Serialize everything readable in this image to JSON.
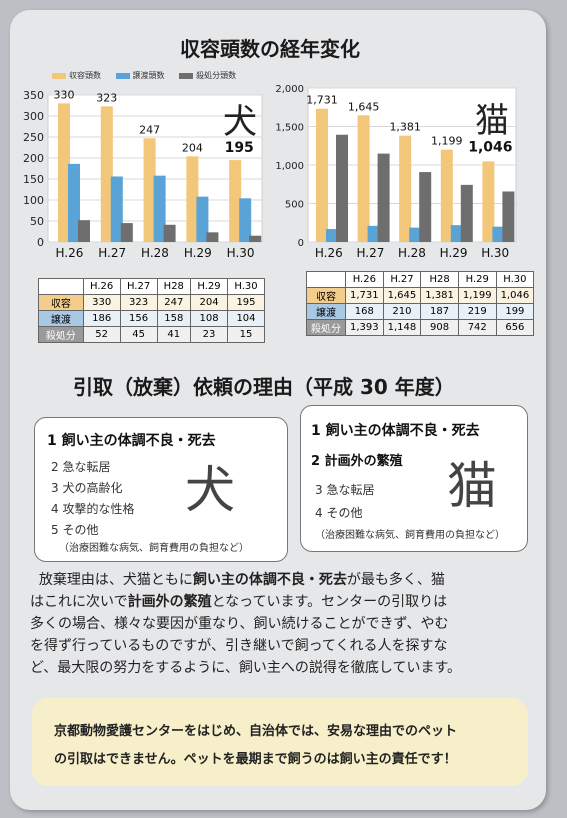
{
  "section1": {
    "title": "収容頭数の経年変化"
  },
  "legend": [
    {
      "label": "収容頭数",
      "color": "#f2c77a"
    },
    {
      "label": "譲渡頭数",
      "color": "#5aa3d6"
    },
    {
      "label": "殺処分頭数",
      "color": "#6e6e6e"
    }
  ],
  "chart_data": [
    {
      "type": "bar",
      "categories": [
        "H.26",
        "H.27",
        "H.28",
        "H.29",
        "H.30"
      ],
      "series": [
        {
          "name": "収容頭数",
          "values": [
            330,
            323,
            247,
            204,
            195
          ]
        },
        {
          "name": "譲渡頭数",
          "values": [
            186,
            156,
            158,
            108,
            104
          ]
        },
        {
          "name": "殺処分頭数",
          "values": [
            52,
            45,
            41,
            23,
            15
          ]
        }
      ],
      "data_labels": [
        "330",
        "323",
        "247",
        "204",
        "195"
      ],
      "yticks": [
        "0",
        "50",
        "100",
        "150",
        "200",
        "250",
        "300",
        "350"
      ],
      "ylim": [
        0,
        350
      ],
      "label": "犬",
      "grid": true
    },
    {
      "type": "bar",
      "categories": [
        "H.26",
        "H.27",
        "H.28",
        "H.29",
        "H.30"
      ],
      "series": [
        {
          "name": "収容頭数",
          "values": [
            1731,
            1645,
            1381,
            1199,
            1046
          ]
        },
        {
          "name": "譲渡頭数",
          "values": [
            168,
            210,
            187,
            219,
            199
          ]
        },
        {
          "name": "殺処分頭数",
          "values": [
            1393,
            1148,
            908,
            742,
            656
          ]
        }
      ],
      "data_labels": [
        "1,731",
        "1,645",
        "1,381",
        "1,199",
        "1,046"
      ],
      "yticks": [
        "0",
        "500",
        "1,000",
        "1,500",
        "2,000"
      ],
      "ylim": [
        0,
        2000
      ],
      "label": "猫",
      "grid": true
    }
  ],
  "dog_table": {
    "headers": [
      "",
      "H.26",
      "H.27",
      "H28",
      "H.29",
      "H.30"
    ],
    "rows": [
      [
        "収容",
        "330",
        "323",
        "247",
        "204",
        "195"
      ],
      [
        "譲渡",
        "186",
        "156",
        "158",
        "108",
        "104"
      ],
      [
        "殺処分",
        "52",
        "45",
        "41",
        "23",
        "15"
      ]
    ]
  },
  "cat_table": {
    "headers": [
      "",
      "H.26",
      "H.27",
      "H28",
      "H.29",
      "H.30"
    ],
    "rows": [
      [
        "収容",
        "1,731",
        "1,645",
        "1,381",
        "1,199",
        "1,046"
      ],
      [
        "譲渡",
        "168",
        "210",
        "187",
        "219",
        "199"
      ],
      [
        "殺処分",
        "1,393",
        "1,148",
        "908",
        "742",
        "656"
      ]
    ]
  },
  "section2": {
    "title": "引取（放棄）依頼の理由（平成 30 年度）"
  },
  "dog_reasons": {
    "big": "犬",
    "items": [
      "1 飼い主の体調不良・死去",
      "2 急な転居",
      "3 犬の高齢化",
      "4 攻撃的な性格",
      "5 その他"
    ],
    "note": "（治療困難な病気、飼育費用の負担など）"
  },
  "cat_reasons": {
    "big": "猫",
    "items": [
      "1 飼い主の体調不良・死去",
      "2 計画外の繁殖",
      "3 急な転居",
      "4 その他"
    ],
    "note": "（治療困難な病気、飼育費用の負担など）"
  },
  "paragraph": {
    "l1a": "放棄理由は、犬猫ともに",
    "l1b": "飼い主の体調不良・死去",
    "l1c": "が最も多く、猫",
    "l2a": "はこれに次いで",
    "l2b": "計画外の繁殖",
    "l2c": "となっています。センターの引取りは",
    "l3": "多くの場合、様々な要因が重なり、飼い続けることができず、やむ",
    "l4": "を得ず行っているものですが、引き継いで飼ってくれる人を探すな",
    "l5": "ど、最大限の努力をするように、飼い主への説得を徹底しています。"
  },
  "notice": {
    "l1": "京都動物愛護センターをはじめ、自治体では、安易な理由でのペット",
    "l2": "の引取はできません。ペットを最期まで飼うのは飼い主の責任です！"
  }
}
